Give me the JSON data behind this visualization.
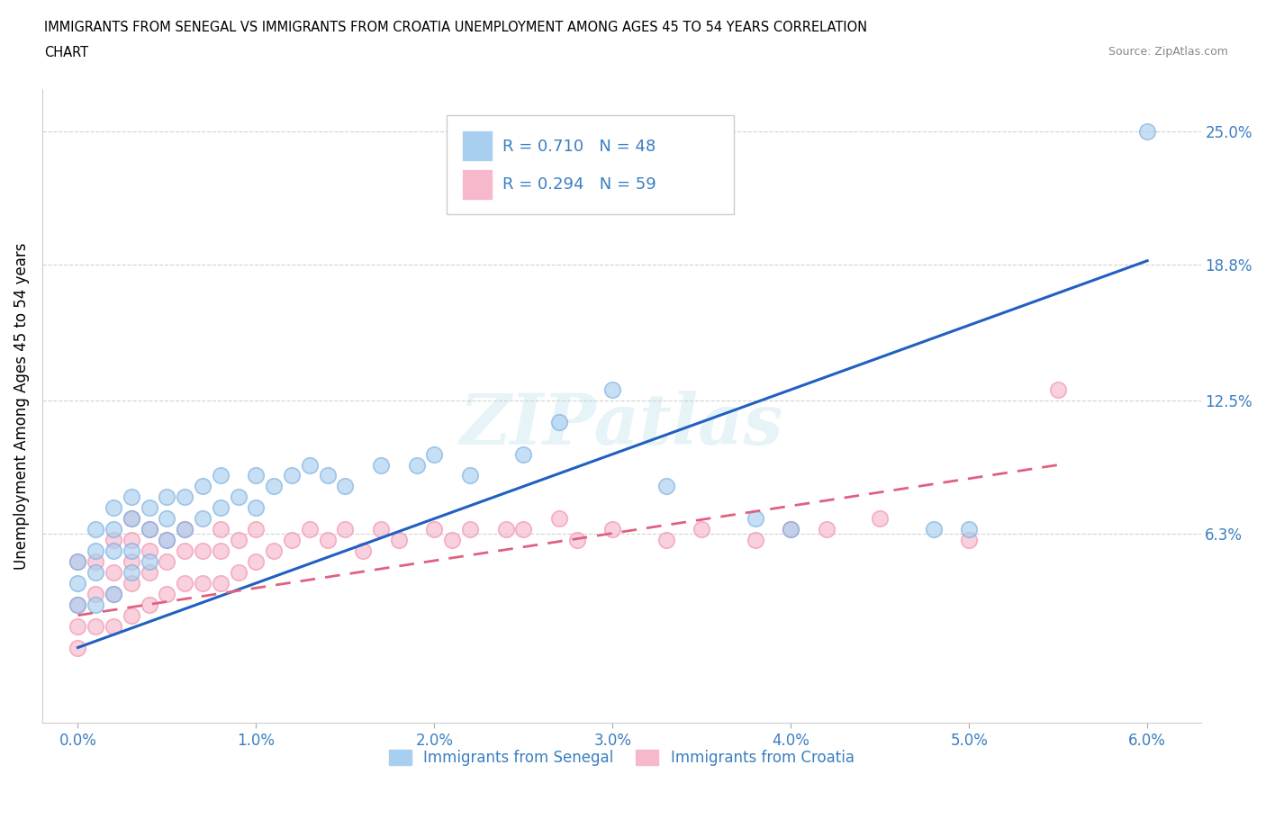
{
  "title_line1": "IMMIGRANTS FROM SENEGAL VS IMMIGRANTS FROM CROATIA UNEMPLOYMENT AMONG AGES 45 TO 54 YEARS CORRELATION",
  "title_line2": "CHART",
  "source": "Source: ZipAtlas.com",
  "ylabel": "Unemployment Among Ages 45 to 54 years",
  "x_tick_labels": [
    "0.0%",
    "1.0%",
    "2.0%",
    "3.0%",
    "4.0%",
    "5.0%",
    "6.0%"
  ],
  "x_tick_values": [
    0.0,
    0.01,
    0.02,
    0.03,
    0.04,
    0.05,
    0.06
  ],
  "y_tick_labels": [
    "6.3%",
    "12.5%",
    "18.8%",
    "25.0%"
  ],
  "y_tick_values": [
    0.063,
    0.125,
    0.188,
    0.25
  ],
  "xlim": [
    -0.002,
    0.063
  ],
  "ylim": [
    -0.025,
    0.27
  ],
  "senegal_R": 0.71,
  "senegal_N": 48,
  "croatia_R": 0.294,
  "croatia_N": 59,
  "senegal_color": "#a8cff0",
  "croatia_color": "#f7b8cc",
  "senegal_edge_color": "#7aaee0",
  "croatia_edge_color": "#f090aa",
  "senegal_line_color": "#2060c0",
  "croatia_line_color": "#e06080",
  "watermark": "ZIPatlas",
  "legend_label_1": "Immigrants from Senegal",
  "legend_label_2": "Immigrants from Croatia",
  "senegal_x": [
    0.0,
    0.0,
    0.0,
    0.001,
    0.001,
    0.001,
    0.001,
    0.002,
    0.002,
    0.002,
    0.002,
    0.003,
    0.003,
    0.003,
    0.003,
    0.004,
    0.004,
    0.004,
    0.005,
    0.005,
    0.005,
    0.006,
    0.006,
    0.007,
    0.007,
    0.008,
    0.008,
    0.009,
    0.01,
    0.01,
    0.011,
    0.012,
    0.013,
    0.014,
    0.015,
    0.017,
    0.019,
    0.02,
    0.022,
    0.025,
    0.027,
    0.03,
    0.033,
    0.038,
    0.04,
    0.048,
    0.05,
    0.06
  ],
  "senegal_y": [
    0.03,
    0.04,
    0.05,
    0.03,
    0.045,
    0.055,
    0.065,
    0.035,
    0.055,
    0.065,
    0.075,
    0.045,
    0.055,
    0.07,
    0.08,
    0.05,
    0.065,
    0.075,
    0.06,
    0.07,
    0.08,
    0.065,
    0.08,
    0.07,
    0.085,
    0.075,
    0.09,
    0.08,
    0.075,
    0.09,
    0.085,
    0.09,
    0.095,
    0.09,
    0.085,
    0.095,
    0.095,
    0.1,
    0.09,
    0.1,
    0.115,
    0.13,
    0.085,
    0.07,
    0.065,
    0.065,
    0.065,
    0.25
  ],
  "croatia_x": [
    0.0,
    0.0,
    0.0,
    0.0,
    0.001,
    0.001,
    0.001,
    0.002,
    0.002,
    0.002,
    0.002,
    0.003,
    0.003,
    0.003,
    0.003,
    0.003,
    0.004,
    0.004,
    0.004,
    0.004,
    0.005,
    0.005,
    0.005,
    0.006,
    0.006,
    0.006,
    0.007,
    0.007,
    0.008,
    0.008,
    0.008,
    0.009,
    0.009,
    0.01,
    0.01,
    0.011,
    0.012,
    0.013,
    0.014,
    0.015,
    0.016,
    0.017,
    0.018,
    0.02,
    0.021,
    0.022,
    0.024,
    0.025,
    0.027,
    0.028,
    0.03,
    0.033,
    0.035,
    0.038,
    0.04,
    0.042,
    0.045,
    0.05,
    0.055
  ],
  "croatia_y": [
    0.01,
    0.02,
    0.03,
    0.05,
    0.02,
    0.035,
    0.05,
    0.02,
    0.035,
    0.045,
    0.06,
    0.025,
    0.04,
    0.05,
    0.06,
    0.07,
    0.03,
    0.045,
    0.055,
    0.065,
    0.035,
    0.05,
    0.06,
    0.04,
    0.055,
    0.065,
    0.04,
    0.055,
    0.04,
    0.055,
    0.065,
    0.045,
    0.06,
    0.05,
    0.065,
    0.055,
    0.06,
    0.065,
    0.06,
    0.065,
    0.055,
    0.065,
    0.06,
    0.065,
    0.06,
    0.065,
    0.065,
    0.065,
    0.07,
    0.06,
    0.065,
    0.06,
    0.065,
    0.06,
    0.065,
    0.065,
    0.07,
    0.06,
    0.13
  ],
  "senegal_line_x": [
    0.0,
    0.06
  ],
  "senegal_line_y": [
    0.01,
    0.19
  ],
  "croatia_line_x": [
    0.0,
    0.055
  ],
  "croatia_line_y": [
    0.025,
    0.095
  ]
}
